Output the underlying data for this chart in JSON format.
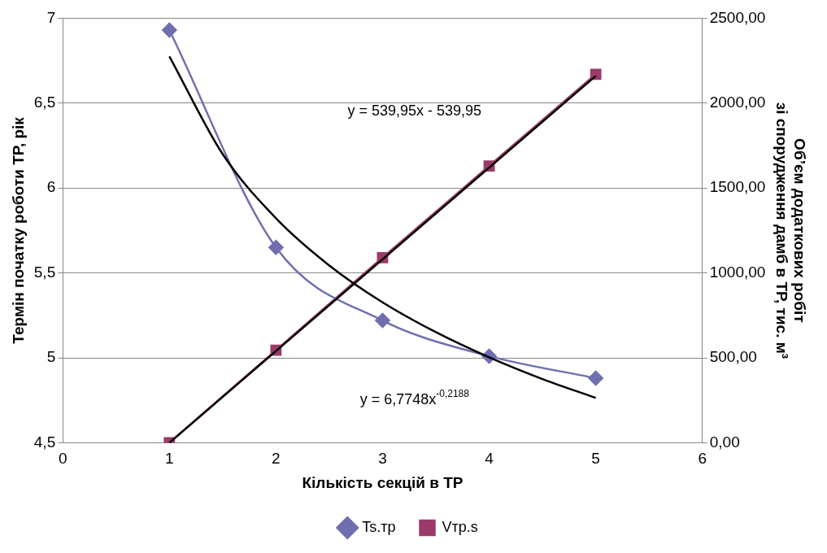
{
  "chart_data": {
    "type": "line",
    "xlabel": "Кількість секцій в ТР",
    "ylabel": "Термін початку роботи ТР, рік",
    "y2label": "Об’єм додаткових робіт\nзі спорудження дамб в ТР, тис. м³",
    "xlim": [
      0,
      6
    ],
    "xticks": [
      0,
      1,
      2,
      3,
      4,
      5,
      6
    ],
    "ylim": [
      4.5,
      7
    ],
    "yticks": [
      {
        "value": 4.5,
        "label": "4,5"
      },
      5,
      {
        "value": 5.5,
        "label": "5,5"
      },
      6,
      {
        "value": 6.5,
        "label": "6,5"
      },
      7
    ],
    "y2lim": [
      0,
      2500
    ],
    "y2ticks": [
      {
        "value": 0,
        "label": "0,00"
      },
      {
        "value": 500,
        "label": "500,00"
      },
      {
        "value": 1000,
        "label": "1000,00"
      },
      {
        "value": 1500,
        "label": "1500,00"
      },
      {
        "value": 2000,
        "label": "2000,00"
      },
      {
        "value": 2500,
        "label": "2500,00"
      }
    ],
    "grid": "y",
    "legend": "bottom",
    "series": [
      {
        "name": "Ts.тр",
        "color": "#6f6fb0",
        "marker": "diamond",
        "x": [
          1,
          2,
          3,
          4,
          5
        ],
        "values": [
          6.93,
          5.65,
          5.22,
          5.01,
          4.88
        ]
      },
      {
        "name": "Vтр.s",
        "color": "#9b3a6b",
        "marker": "square",
        "axis": "y2",
        "x": [
          1,
          2,
          3,
          4,
          5
        ],
        "values": [
          0,
          545,
          1090,
          1630,
          2170
        ]
      },
      {
        "color": "#000000",
        "marker": "none",
        "x": [
          1,
          1.5,
          2,
          2.5,
          3,
          3.5,
          4,
          4.5,
          5
        ],
        "values": [
          6.775,
          6.2,
          5.822,
          5.544,
          5.327,
          5.151,
          5.003,
          4.875,
          4.764
        ]
      },
      {
        "color": "#000000",
        "marker": "none",
        "axis": "y2",
        "x": [
          1,
          5
        ],
        "values": [
          0,
          2160
        ]
      }
    ],
    "annotations": [
      "y = 539,95x - 539,95",
      "y = 6,7748x$^{-0,2188}$"
    ]
  }
}
